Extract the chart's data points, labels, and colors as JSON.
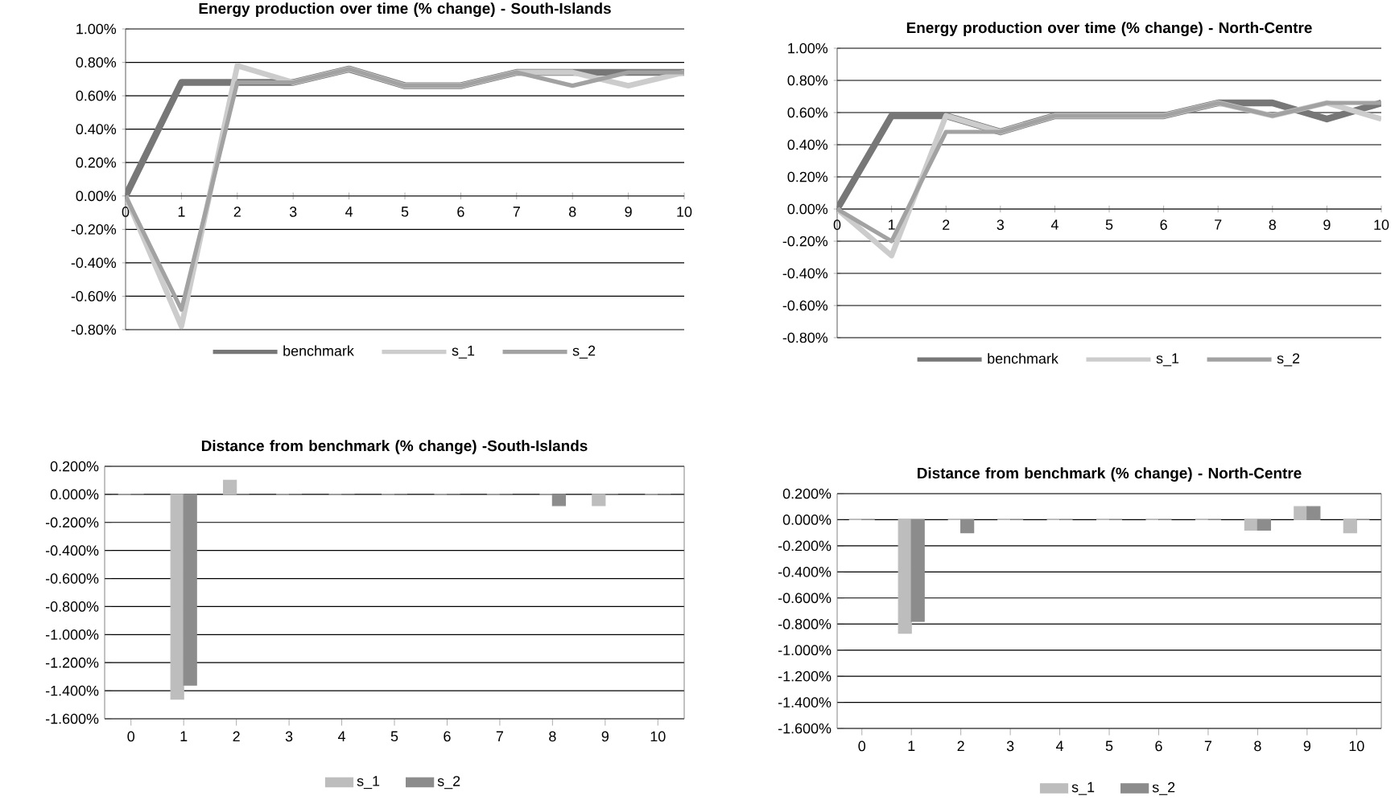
{
  "chart_data": [
    {
      "type": "line",
      "title": "Energy production over time (% change) - South-Islands",
      "categories": [
        "0",
        "1",
        "2",
        "3",
        "4",
        "5",
        "6",
        "7",
        "8",
        "9",
        "10"
      ],
      "series": [
        {
          "name": "benchmark",
          "color": "#777777",
          "values": [
            0,
            0.68,
            0.68,
            0.68,
            0.76,
            0.66,
            0.66,
            0.74,
            0.74,
            0.74,
            0.74
          ]
        },
        {
          "name": "s_1",
          "color": "#cccccc",
          "values": [
            0,
            -0.78,
            0.78,
            0.68,
            0.76,
            0.66,
            0.66,
            0.74,
            0.74,
            0.66,
            0.74
          ]
        },
        {
          "name": "s_2",
          "color": "#a2a2a2",
          "values": [
            0,
            -0.68,
            0.68,
            0.68,
            0.76,
            0.66,
            0.66,
            0.74,
            0.66,
            0.74,
            0.74
          ]
        }
      ],
      "ylim": [
        -0.8,
        1.0
      ],
      "yticks": [
        {
          "value": -0.8,
          "label": "-0.80%"
        },
        {
          "value": -0.6,
          "label": "-0.60%"
        },
        {
          "value": -0.4,
          "label": "-0.40%"
        },
        {
          "value": -0.2,
          "label": "-0.20%"
        },
        {
          "value": 0,
          "label": "0.00%"
        },
        {
          "value": 0.2,
          "label": "0.20%"
        },
        {
          "value": 0.4,
          "label": "0.40%"
        },
        {
          "value": 0.6,
          "label": "0.60%"
        },
        {
          "value": 0.8,
          "label": "0.80%"
        },
        {
          "value": 1.0,
          "label": "1.00%"
        }
      ],
      "grid": "y",
      "legend": "bottom"
    },
    {
      "type": "line",
      "title": "Energy production over time (% change) - North-Centre",
      "categories": [
        "0",
        "1",
        "2",
        "3",
        "4",
        "5",
        "6",
        "7",
        "8",
        "9",
        "10"
      ],
      "series": [
        {
          "name": "benchmark",
          "color": "#777777",
          "values": [
            0,
            0.58,
            0.58,
            0.48,
            0.58,
            0.58,
            0.58,
            0.66,
            0.66,
            0.56,
            0.66
          ]
        },
        {
          "name": "s_1",
          "color": "#cccccc",
          "values": [
            0,
            -0.29,
            0.58,
            0.48,
            0.58,
            0.58,
            0.58,
            0.66,
            0.58,
            0.66,
            0.56
          ]
        },
        {
          "name": "s_2",
          "color": "#a2a2a2",
          "values": [
            0,
            -0.2,
            0.48,
            0.48,
            0.58,
            0.58,
            0.58,
            0.66,
            0.58,
            0.66,
            0.66
          ]
        }
      ],
      "ylim": [
        -0.8,
        1.0
      ],
      "yticks": [
        {
          "value": -0.8,
          "label": "-0.80%"
        },
        {
          "value": -0.6,
          "label": "-0.60%"
        },
        {
          "value": -0.4,
          "label": "-0.40%"
        },
        {
          "value": -0.2,
          "label": "-0.20%"
        },
        {
          "value": 0,
          "label": "0.00%"
        },
        {
          "value": 0.2,
          "label": "0.20%"
        },
        {
          "value": 0.4,
          "label": "0.40%"
        },
        {
          "value": 0.6,
          "label": "0.60%"
        },
        {
          "value": 0.8,
          "label": "0.80%"
        },
        {
          "value": 1.0,
          "label": "1.00%"
        }
      ],
      "grid": "y",
      "legend": "bottom"
    },
    {
      "type": "bar",
      "title": "Distance from benchmark (% change) -South-Islands",
      "categories": [
        "0",
        "1",
        "2",
        "3",
        "4",
        "5",
        "6",
        "7",
        "8",
        "9",
        "10"
      ],
      "series": [
        {
          "name": "s_1",
          "color": "#bdbdbd",
          "values": [
            0,
            -1.46,
            0.1,
            0,
            0,
            0,
            0,
            0,
            0,
            -0.08,
            0
          ]
        },
        {
          "name": "s_2",
          "color": "#8c8c8c",
          "values": [
            0,
            -1.36,
            0,
            0,
            0,
            0,
            0,
            0,
            -0.08,
            0,
            0
          ]
        }
      ],
      "ylim": [
        -1.6,
        0.2
      ],
      "yticks": [
        {
          "value": -1.6,
          "label": "-1.600%"
        },
        {
          "value": -1.4,
          "label": "-1.400%"
        },
        {
          "value": -1.2,
          "label": "-1.200%"
        },
        {
          "value": -1.0,
          "label": "-1.000%"
        },
        {
          "value": -0.8,
          "label": "-0.800%"
        },
        {
          "value": -0.6,
          "label": "-0.600%"
        },
        {
          "value": -0.4,
          "label": "-0.400%"
        },
        {
          "value": -0.2,
          "label": "-0.200%"
        },
        {
          "value": 0,
          "label": "0.000%"
        },
        {
          "value": 0.2,
          "label": "0.200%"
        }
      ],
      "grid": "y",
      "legend": "bottom"
    },
    {
      "type": "bar",
      "title": "Distance from benchmark (% change) - North-Centre",
      "categories": [
        "0",
        "1",
        "2",
        "3",
        "4",
        "5",
        "6",
        "7",
        "8",
        "9",
        "10"
      ],
      "series": [
        {
          "name": "s_1",
          "color": "#bdbdbd",
          "values": [
            0,
            -0.87,
            0,
            0,
            0,
            0,
            0,
            0,
            -0.08,
            0.1,
            -0.1
          ]
        },
        {
          "name": "s_2",
          "color": "#8c8c8c",
          "values": [
            0,
            -0.78,
            -0.1,
            0,
            0,
            0,
            0,
            0,
            -0.08,
            0.1,
            0
          ]
        }
      ],
      "ylim": [
        -1.6,
        0.2
      ],
      "yticks": [
        {
          "value": -1.6,
          "label": "-1.600%"
        },
        {
          "value": -1.4,
          "label": "-1.400%"
        },
        {
          "value": -1.2,
          "label": "-1.200%"
        },
        {
          "value": -1.0,
          "label": "-1.000%"
        },
        {
          "value": -0.8,
          "label": "-0.800%"
        },
        {
          "value": -0.6,
          "label": "-0.600%"
        },
        {
          "value": -0.4,
          "label": "-0.400%"
        },
        {
          "value": -0.2,
          "label": "-0.200%"
        },
        {
          "value": 0,
          "label": "0.000%"
        },
        {
          "value": 0.2,
          "label": "0.200%"
        }
      ],
      "grid": "y",
      "legend": "bottom"
    }
  ]
}
